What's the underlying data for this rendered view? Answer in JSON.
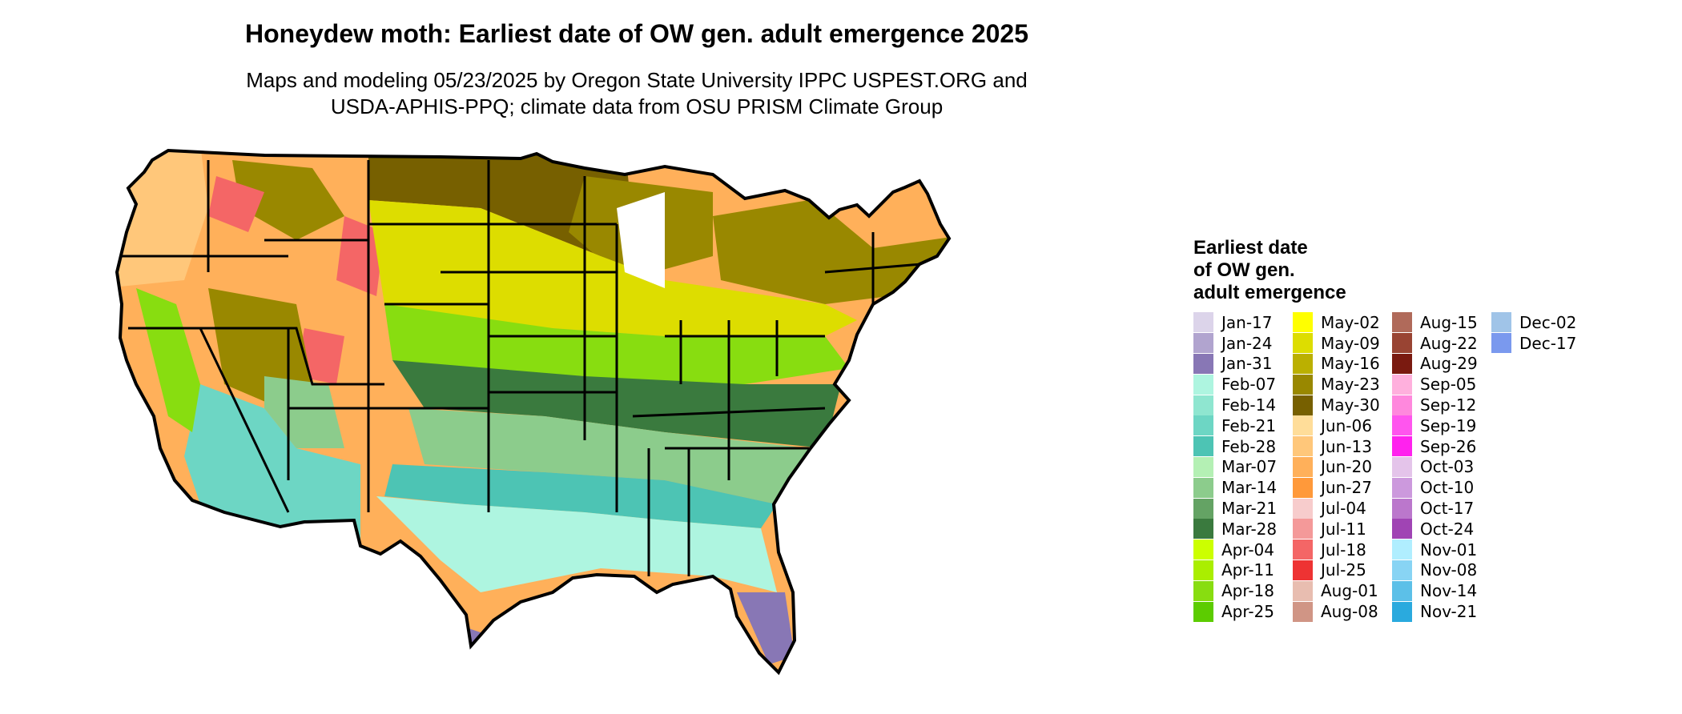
{
  "title": "Honeydew moth: Earliest date of OW gen. adult emergence 2025",
  "subtitle_lines": [
    "Maps and modeling 05/23/2025 by Oregon State University IPPC USPEST.ORG and",
    "USDA-APHIS-PPQ; climate data from OSU PRISM Climate Group"
  ],
  "legend": {
    "title_lines": [
      "Earliest date",
      "of OW gen.",
      "adult emergence"
    ],
    "columns": [
      [
        {
          "label": "Jan-17",
          "color": "#dcd4ea"
        },
        {
          "label": "Jan-24",
          "color": "#b1a4cf"
        },
        {
          "label": "Jan-31",
          "color": "#8877b5"
        },
        {
          "label": "Feb-07",
          "color": "#aef5e0"
        },
        {
          "label": "Feb-14",
          "color": "#8fe6d0"
        },
        {
          "label": "Feb-21",
          "color": "#6dd6c4"
        },
        {
          "label": "Feb-28",
          "color": "#4dc4b4"
        },
        {
          "label": "Mar-07",
          "color": "#b4f0b4"
        },
        {
          "label": "Mar-14",
          "color": "#8ccc8c"
        },
        {
          "label": "Mar-21",
          "color": "#64a364"
        },
        {
          "label": "Mar-28",
          "color": "#3a7a3e"
        },
        {
          "label": "Apr-04",
          "color": "#ccff00"
        },
        {
          "label": "Apr-11",
          "color": "#aaee00"
        },
        {
          "label": "Apr-18",
          "color": "#88dd10"
        },
        {
          "label": "Apr-25",
          "color": "#5ccc00"
        }
      ],
      [
        {
          "label": "May-02",
          "color": "#ffff00"
        },
        {
          "label": "May-09",
          "color": "#dddd00"
        },
        {
          "label": "May-16",
          "color": "#bbb000"
        },
        {
          "label": "May-23",
          "color": "#998800"
        },
        {
          "label": "May-30",
          "color": "#776000"
        },
        {
          "label": "Jun-06",
          "color": "#ffdd99"
        },
        {
          "label": "Jun-13",
          "color": "#ffc77a"
        },
        {
          "label": "Jun-20",
          "color": "#ffb05a"
        },
        {
          "label": "Jun-27",
          "color": "#ff993a"
        },
        {
          "label": "Jul-04",
          "color": "#f7cccc"
        },
        {
          "label": "Jul-11",
          "color": "#f49999"
        },
        {
          "label": "Jul-18",
          "color": "#f46666"
        },
        {
          "label": "Jul-25",
          "color": "#ee3333"
        },
        {
          "label": "Aug-01",
          "color": "#e8bdb0"
        },
        {
          "label": "Aug-08",
          "color": "#d09585"
        }
      ],
      [
        {
          "label": "Aug-15",
          "color": "#b06a5a"
        },
        {
          "label": "Aug-22",
          "color": "#994433"
        },
        {
          "label": "Aug-29",
          "color": "#7a1a10"
        },
        {
          "label": "Sep-05",
          "color": "#ffb0dd"
        },
        {
          "label": "Sep-12",
          "color": "#ff88dd"
        },
        {
          "label": "Sep-19",
          "color": "#ff55ee"
        },
        {
          "label": "Sep-26",
          "color": "#ff22ee"
        },
        {
          "label": "Oct-03",
          "color": "#e4c4ea"
        },
        {
          "label": "Oct-10",
          "color": "#cc99dd"
        },
        {
          "label": "Oct-17",
          "color": "#bb77cc"
        },
        {
          "label": "Oct-24",
          "color": "#a044b4"
        },
        {
          "label": "Nov-01",
          "color": "#b0eeff"
        },
        {
          "label": "Nov-08",
          "color": "#88d4f4"
        },
        {
          "label": "Nov-14",
          "color": "#5cc0e8"
        },
        {
          "label": "Nov-21",
          "color": "#2aaade"
        }
      ],
      [
        {
          "label": "Dec-02",
          "color": "#a0c4e8"
        },
        {
          "label": "Dec-17",
          "color": "#7a99ee"
        }
      ]
    ]
  },
  "map_colors": {
    "border": "#000000",
    "far_north": "#776000",
    "north": "#998800",
    "mountain": "#ffb05a",
    "high_peaks": "#f46666",
    "pnw": "#ffc77a",
    "corn_belt": "#dddd00",
    "mid": "#88dd10",
    "mid_south": "#3a7a3e",
    "south": "#8ccc8c",
    "gulf": "#4dc4b4",
    "gulf_coast": "#aef5e0",
    "desert": "#6dd6c4",
    "calif_valley": "#88dd10",
    "florida_tip": "#8877b5",
    "lake": "#ffffff"
  }
}
